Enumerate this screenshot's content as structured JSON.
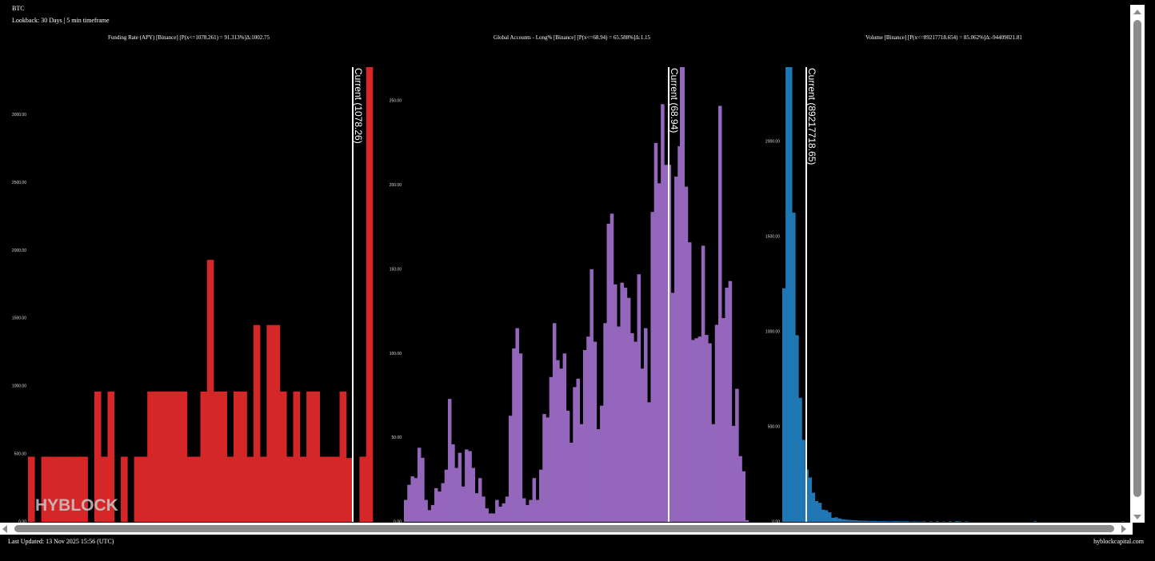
{
  "header": {
    "symbol": "BTC",
    "lookback": "Lookback: 30 Days | 5 min timeframe"
  },
  "footer": {
    "last_updated": "Last Updated: 13 Nov 2025 15:56 (UTC)",
    "site": "hyblockcapital.com"
  },
  "watermark": "HYBLOCK",
  "chart_data": [
    {
      "type": "bar",
      "title": "Funding Rate (APY) [Binance] [P(x<=1078.261) = 91.313%]Δ:1002.75",
      "color": "#d62728",
      "ylim": [
        0,
        3350
      ],
      "yticks": [
        "0.00",
        "500.00",
        "1000.00",
        "1500.00",
        "2000.00",
        "2500.00",
        "3000.00"
      ],
      "current_label": "Current (1078.26)",
      "current_value": 1078.26,
      "values": [
        480,
        0,
        480,
        480,
        480,
        480,
        480,
        480,
        480,
        0,
        960,
        480,
        960,
        0,
        480,
        0,
        480,
        480,
        960,
        960,
        960,
        960,
        960,
        960,
        480,
        480,
        960,
        1930,
        960,
        960,
        480,
        960,
        960,
        480,
        1450,
        480,
        1450,
        1450,
        960,
        480,
        960,
        480,
        960,
        960,
        480,
        480,
        480,
        960,
        470,
        0,
        480,
        3400
      ]
    },
    {
      "type": "bar",
      "title": "Global Accounts - Long% [Binance] [P(x<=68.94) = 65.588%]Δ:1.15",
      "color": "#9467bd",
      "ylim": [
        0,
        270
      ],
      "yticks": [
        "0.00",
        "50.00",
        "100.00",
        "150.00",
        "200.00",
        "250.00"
      ],
      "current_label": "Current (68.94)",
      "current_value": 68.94,
      "values": [
        13,
        22,
        27,
        26,
        44,
        38,
        13,
        7,
        10,
        20,
        18,
        23,
        31,
        73,
        46,
        32,
        41,
        21,
        43,
        42,
        32,
        17,
        26,
        15,
        8,
        5,
        5,
        13,
        9,
        11,
        15,
        63,
        103,
        115,
        100,
        14,
        10,
        13,
        26,
        13,
        31,
        64,
        62,
        86,
        118,
        96,
        91,
        100,
        66,
        47,
        80,
        85,
        58,
        102,
        110,
        150,
        107,
        55,
        69,
        118,
        177,
        183,
        141,
        116,
        142,
        139,
        133,
        112,
        107,
        147,
        91,
        115,
        71,
        184,
        225,
        201,
        248,
        212,
        212,
        136,
        205,
        272,
        272,
        199,
        166,
        108,
        109,
        110,
        164,
        111,
        106,
        58,
        117,
        247,
        121,
        139,
        143,
        57,
        79,
        39,
        30,
        1
      ]
    },
    {
      "type": "bar",
      "title": "Volume [Binance] [P(x<=89217718.654) = 85.062%]Δ:-94409021.81",
      "color": "#1f77b4",
      "ylim": [
        0,
        2390
      ],
      "yticks": [
        "0.00",
        "500.00",
        "1000.00",
        "1500.00",
        "2000.00"
      ],
      "current_label": "Current (89217718.65)",
      "current_value": 89217718.65,
      "values": [
        1228,
        2600,
        2600,
        1625,
        981,
        652,
        431,
        275,
        233,
        153,
        109,
        100,
        64,
        61,
        50,
        21,
        24,
        18,
        14,
        12,
        10,
        9,
        8,
        7,
        6,
        6,
        5,
        5,
        5,
        4,
        4,
        4,
        3,
        3,
        4,
        4,
        3,
        3,
        3,
        2,
        3,
        2,
        2,
        3,
        0,
        3,
        0,
        3,
        0,
        2,
        0,
        3,
        0,
        4,
        3,
        0,
        3,
        0,
        0,
        0,
        0,
        0,
        0,
        0,
        0,
        0,
        0,
        0,
        0,
        0,
        0,
        0,
        0,
        0,
        0,
        0,
        0,
        3,
        0,
        0,
        0,
        0,
        0,
        0,
        0,
        0,
        0,
        0,
        0,
        0,
        0,
        0,
        0,
        0,
        0,
        0,
        0,
        0,
        0,
        0,
        0,
        0,
        0,
        0,
        2,
        0
      ]
    }
  ]
}
